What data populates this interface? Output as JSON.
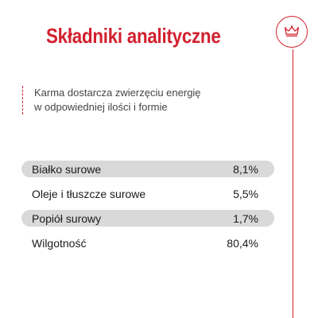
{
  "title": "Składniki analityczne",
  "brand": {
    "logo_icon": "crown-icon",
    "accent_color": "#d2202e"
  },
  "intro": {
    "line1": "Karma dostarcza zwierzęciu energię",
    "line2": "w odpowiedniej ilości i formie"
  },
  "nutrients": [
    {
      "label": "Białko surowe",
      "value": "8,1%"
    },
    {
      "label": "Oleje i tłuszcze surowe",
      "value": "5,5%"
    },
    {
      "label": "Popiół surowy",
      "value": "1,7%"
    },
    {
      "label": "Wilgotność",
      "value": "80,4%"
    }
  ]
}
